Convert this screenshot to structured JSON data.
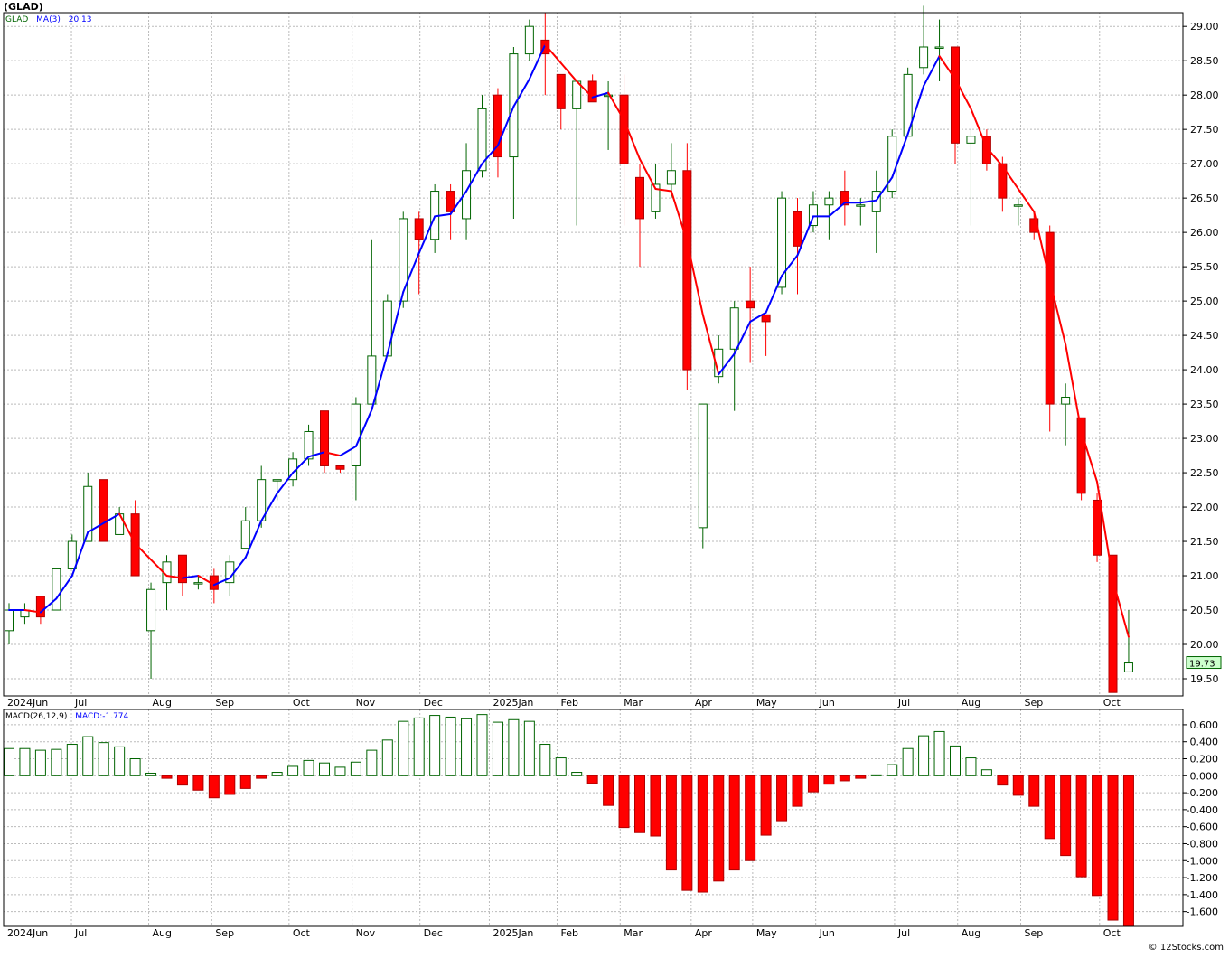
{
  "title": "(GLAD)",
  "watermark": "© 12Stocks.com",
  "legend": {
    "symbol": "GLAD",
    "ma_label": "MA(3)",
    "ma_value": "20.13"
  },
  "macd_legend": {
    "label": "MACD(26,12,9)",
    "value_label": "MACD:-1.774"
  },
  "last_price_label": "19.73",
  "colors": {
    "up": "#006400",
    "down": "#ff0000",
    "ma_up": "#0000ff",
    "ma_down": "#ff0000",
    "grid": "#bbbbbb"
  },
  "chart_data": [
    {
      "type": "candlestick",
      "series_name": "GLAD",
      "time_axis_labels": [
        {
          "label": "2024Jun",
          "index": 0
        },
        {
          "label": "Jul",
          "index": 4.3
        },
        {
          "label": "Aug",
          "index": 9.2
        },
        {
          "label": "Sep",
          "index": 13.2
        },
        {
          "label": "Oct",
          "index": 18.1
        },
        {
          "label": "Nov",
          "index": 22.1
        },
        {
          "label": "Dec",
          "index": 26.4
        },
        {
          "label": "2025Jan",
          "index": 30.8
        },
        {
          "label": "Feb",
          "index": 35.1
        },
        {
          "label": "Mar",
          "index": 39.1
        },
        {
          "label": "Apr",
          "index": 43.6
        },
        {
          "label": "May",
          "index": 47.5
        },
        {
          "label": "Jun",
          "index": 51.5
        },
        {
          "label": "Jul",
          "index": 56.5
        },
        {
          "label": "Aug",
          "index": 60.5
        },
        {
          "label": "Sep",
          "index": 64.5
        },
        {
          "label": "Oct",
          "index": 69.5
        }
      ],
      "y_ticks": [
        19.5,
        20.0,
        20.5,
        21.0,
        21.5,
        22.0,
        22.5,
        23.0,
        23.5,
        24.0,
        24.5,
        25.0,
        25.5,
        26.0,
        26.5,
        27.0,
        27.5,
        28.0,
        28.5,
        29.0
      ],
      "ylim": [
        19.25,
        29.2
      ],
      "candles": [
        [
          20.2,
          20.5,
          20.0,
          20.6
        ],
        [
          20.4,
          20.5,
          20.3,
          20.6
        ],
        [
          20.7,
          20.4,
          20.3,
          20.7
        ],
        [
          20.5,
          21.1,
          20.5,
          21.1
        ],
        [
          21.1,
          21.5,
          21.1,
          21.6
        ],
        [
          21.5,
          22.3,
          21.5,
          22.5
        ],
        [
          22.4,
          21.5,
          21.5,
          22.4
        ],
        [
          21.6,
          21.9,
          21.6,
          22.0
        ],
        [
          21.9,
          21.0,
          21.0,
          22.1
        ],
        [
          20.2,
          20.8,
          19.5,
          20.9
        ],
        [
          20.9,
          21.2,
          20.5,
          21.3
        ],
        [
          21.3,
          20.9,
          20.7,
          21.3
        ],
        [
          20.9,
          20.9,
          20.8,
          21.0
        ],
        [
          21.0,
          20.8,
          20.6,
          21.1
        ],
        [
          20.9,
          21.2,
          20.7,
          21.3
        ],
        [
          21.4,
          21.8,
          21.4,
          22.0
        ],
        [
          21.8,
          22.4,
          21.7,
          22.6
        ],
        [
          22.4,
          22.4,
          22.1,
          22.4
        ],
        [
          22.4,
          22.7,
          22.3,
          22.8
        ],
        [
          22.7,
          23.1,
          22.6,
          23.2
        ],
        [
          23.4,
          22.6,
          22.5,
          23.4
        ],
        [
          22.6,
          22.55,
          22.5,
          22.6
        ],
        [
          22.6,
          23.5,
          22.1,
          23.6
        ],
        [
          23.5,
          24.2,
          23.5,
          25.9
        ],
        [
          24.2,
          25.0,
          24.2,
          25.1
        ],
        [
          25.0,
          26.2,
          24.9,
          26.3
        ],
        [
          26.2,
          25.9,
          25.1,
          26.3
        ],
        [
          25.9,
          26.6,
          25.7,
          26.7
        ],
        [
          26.6,
          26.3,
          25.9,
          26.7
        ],
        [
          26.2,
          26.9,
          25.9,
          27.3
        ],
        [
          26.9,
          27.8,
          26.8,
          28.0
        ],
        [
          28.0,
          27.1,
          26.8,
          28.1
        ],
        [
          27.1,
          28.6,
          26.2,
          28.7
        ],
        [
          28.6,
          29.0,
          28.5,
          29.1
        ],
        [
          28.8,
          28.6,
          28.0,
          29.2
        ],
        [
          28.3,
          27.8,
          27.5,
          28.3
        ],
        [
          27.8,
          28.2,
          26.1,
          28.2
        ],
        [
          28.2,
          27.9,
          27.9,
          28.3
        ],
        [
          28.0,
          28.0,
          27.2,
          28.2
        ],
        [
          28.0,
          27.0,
          26.1,
          28.3
        ],
        [
          26.8,
          26.2,
          25.5,
          27.0
        ],
        [
          26.3,
          26.7,
          26.2,
          27.0
        ],
        [
          26.7,
          26.9,
          26.5,
          27.3
        ],
        [
          26.9,
          24.0,
          23.7,
          27.3
        ],
        [
          21.7,
          23.5,
          21.4,
          23.5
        ],
        [
          23.9,
          24.3,
          23.8,
          24.5
        ],
        [
          24.3,
          24.9,
          23.4,
          25.0
        ],
        [
          25.0,
          24.9,
          24.1,
          25.5
        ],
        [
          24.8,
          24.7,
          24.2,
          24.8
        ],
        [
          25.2,
          26.5,
          25.1,
          26.6
        ],
        [
          26.3,
          25.8,
          25.1,
          26.5
        ],
        [
          26.1,
          26.4,
          26.0,
          26.6
        ],
        [
          26.4,
          26.5,
          25.9,
          26.6
        ],
        [
          26.6,
          26.4,
          26.1,
          26.9
        ],
        [
          26.4,
          26.4,
          26.1,
          26.5
        ],
        [
          26.3,
          26.6,
          25.7,
          26.9
        ],
        [
          26.6,
          27.4,
          26.5,
          27.5
        ],
        [
          27.4,
          28.3,
          27.4,
          28.4
        ],
        [
          28.4,
          28.7,
          28.3,
          29.3
        ],
        [
          28.7,
          28.7,
          28.2,
          29.1
        ],
        [
          28.7,
          27.3,
          27.0,
          28.7
        ],
        [
          27.3,
          27.4,
          26.1,
          27.5
        ],
        [
          27.4,
          27.0,
          26.9,
          27.5
        ],
        [
          27.0,
          26.5,
          26.3,
          27.1
        ],
        [
          26.4,
          26.4,
          26.1,
          26.5
        ],
        [
          26.2,
          26.0,
          25.9,
          26.3
        ],
        [
          26.0,
          23.5,
          23.1,
          26.1
        ],
        [
          23.5,
          23.6,
          22.9,
          23.8
        ],
        [
          23.3,
          22.2,
          22.1,
          23.3
        ],
        [
          22.1,
          21.3,
          21.2,
          22.2
        ],
        [
          21.3,
          19.3,
          19.3,
          21.3
        ],
        [
          19.6,
          19.73,
          19.6,
          20.5
        ]
      ],
      "ma_period": 3
    },
    {
      "type": "bar",
      "series_name": "MACD(26,12,9)",
      "y_ticks": [
        0.6,
        0.4,
        0.2,
        0.0,
        -0.2,
        -0.4,
        -0.6,
        -0.8,
        -1.0,
        -1.2,
        -1.4,
        -1.6
      ],
      "ylim": [
        -1.774,
        0.78
      ],
      "values": [
        0.32,
        0.32,
        0.3,
        0.31,
        0.37,
        0.46,
        0.39,
        0.34,
        0.2,
        0.03,
        -0.03,
        -0.11,
        -0.17,
        -0.26,
        -0.22,
        -0.15,
        -0.03,
        0.04,
        0.11,
        0.18,
        0.15,
        0.1,
        0.16,
        0.3,
        0.42,
        0.64,
        0.68,
        0.71,
        0.69,
        0.67,
        0.72,
        0.63,
        0.66,
        0.64,
        0.37,
        0.21,
        0.04,
        -0.09,
        -0.35,
        -0.61,
        -0.67,
        -0.71,
        -1.11,
        -1.35,
        -1.37,
        -1.24,
        -1.11,
        -1.0,
        -0.7,
        -0.53,
        -0.36,
        -0.19,
        -0.1,
        -0.06,
        -0.03,
        0.01,
        0.13,
        0.32,
        0.47,
        0.52,
        0.35,
        0.21,
        0.07,
        -0.11,
        -0.23,
        -0.36,
        -0.74,
        -0.94,
        -1.19,
        -1.41,
        -1.7,
        -1.774
      ]
    }
  ]
}
